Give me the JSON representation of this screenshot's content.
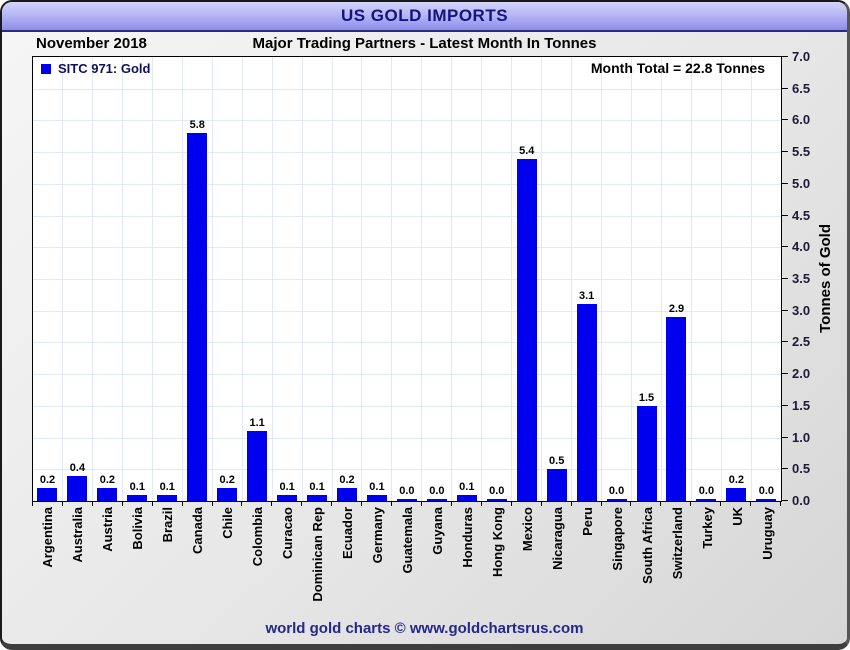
{
  "window": {
    "title": "US GOLD IMPORTS",
    "footer": "world gold charts © www.goldchartsrus.com"
  },
  "header": {
    "date_label": "November 2018",
    "subtitle": "Major Trading Partners - Latest Month In Tonnes"
  },
  "legend": {
    "label": "SITC 971: Gold",
    "marker_color": "#0000ee"
  },
  "annotation": {
    "month_total": "Month Total = 22.8 Tonnes"
  },
  "colors": {
    "bar": "#0000ee",
    "gridline": "#dfe9f7",
    "title_text": "#14147e",
    "footer_text": "#26268c"
  },
  "chart_data": {
    "type": "bar",
    "title": "US GOLD IMPORTS",
    "subtitle_left": "November 2018",
    "subtitle_center": "Major Trading Partners - Latest Month In Tonnes",
    "legend_entry": "SITC 971: Gold",
    "annotation": "Month Total = 22.8 Tonnes",
    "categories": [
      "Argentina",
      "Australia",
      "Austria",
      "Bolivia",
      "Brazil",
      "Canada",
      "Chile",
      "Colombia",
      "Curacao",
      "Dominican Rep",
      "Ecuador",
      "Germany",
      "Guatemala",
      "Guyana",
      "Honduras",
      "Hong Kong",
      "Mexico",
      "Nicaragua",
      "Peru",
      "Singapore",
      "South Africa",
      "Switzerland",
      "Turkey",
      "UK",
      "Uruguay"
    ],
    "values": [
      0.2,
      0.4,
      0.2,
      0.1,
      0.1,
      5.8,
      0.2,
      1.1,
      0.1,
      0.1,
      0.2,
      0.1,
      0.0,
      0.0,
      0.1,
      0.0,
      5.4,
      0.5,
      3.1,
      0.0,
      1.5,
      2.9,
      0.0,
      0.2,
      0.0
    ],
    "value_labels": [
      "0.2",
      "0.4",
      "0.2",
      "0.1",
      "0.1",
      "5.8",
      "0.2",
      "1.1",
      "0.1",
      "0.1",
      "0.2",
      "0.1",
      "0.0",
      "0.0",
      "0.1",
      "0.0",
      "5.4",
      "0.5",
      "3.1",
      "0.0",
      "1.5",
      "2.9",
      "0.0",
      "0.2",
      "0.0"
    ],
    "xlabel": "",
    "ylabel": "Tonnes of Gold",
    "ylim": [
      0,
      7
    ],
    "ytick_step": 0.5,
    "yticks": [
      "0.0",
      "0.5",
      "1.0",
      "1.5",
      "2.0",
      "2.5",
      "3.0",
      "3.5",
      "4.0",
      "4.5",
      "5.0",
      "5.5",
      "6.0",
      "6.5",
      "7.0"
    ],
    "grid": true,
    "legend_position": "top-left",
    "yaxis_side": "right",
    "bar_color": "#0000ee"
  }
}
